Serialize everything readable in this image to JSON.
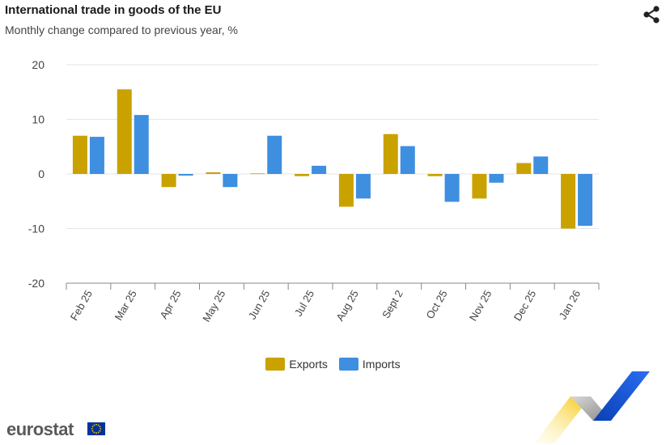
{
  "header": {
    "title": "International trade in goods of the EU",
    "subtitle": "Monthly change compared to previous year, %"
  },
  "icons": {
    "share": "share-icon",
    "flag": "eu-flag-icon"
  },
  "brand": {
    "name": "eurostat"
  },
  "colors": {
    "exports": "#C9A200",
    "imports": "#3E8FE0",
    "grid": "#e6e6e6",
    "axis": "#888888"
  },
  "legend": {
    "items": [
      "Exports",
      "Imports"
    ]
  },
  "chart_data": {
    "type": "bar",
    "categories": [
      "Feb 25",
      "Mar 25",
      "Apr 25",
      "May 25",
      "Jun 25",
      "Jul 25",
      "Aug 25",
      "Sept 2",
      "Oct 25",
      "Nov 25",
      "Dec 25",
      "Jan 26"
    ],
    "series": [
      {
        "name": "Exports",
        "values": [
          7.0,
          15.5,
          -2.4,
          0.3,
          0.1,
          -0.4,
          -6.0,
          7.3,
          -0.4,
          -4.5,
          2.0,
          -10.0
        ]
      },
      {
        "name": "Imports",
        "values": [
          6.8,
          10.8,
          -0.3,
          -2.4,
          7.0,
          1.5,
          -4.5,
          5.1,
          -5.1,
          -1.6,
          3.2,
          -9.5
        ]
      }
    ],
    "y_ticks": [
      20,
      10,
      0,
      -10,
      -20
    ],
    "ylim": [
      -20,
      20
    ],
    "grid": true,
    "legend_position": "bottom-center"
  }
}
